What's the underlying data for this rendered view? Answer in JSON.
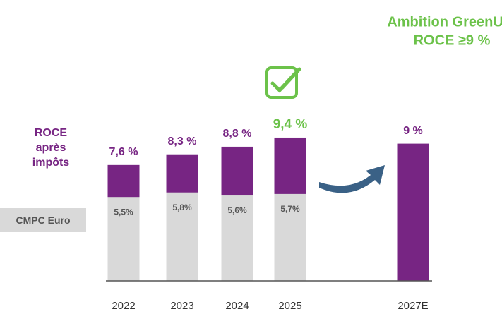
{
  "chart_data": {
    "type": "bar",
    "title": "Ambition GreenUp:",
    "subtitle": "ROCE ≥9 %",
    "categories": [
      "2022",
      "2023",
      "2024",
      "2025",
      "2027E"
    ],
    "series": [
      {
        "name": "ROCE après impôts",
        "color": "#772583",
        "values": [
          7.6,
          8.3,
          8.8,
          9.4,
          9
        ],
        "value_labels": [
          "7,6 %",
          "8,3 %",
          "8,8 %",
          "9,4 %",
          "9 %"
        ]
      },
      {
        "name": "CMPC Euro",
        "color": "#d9d9d9",
        "values": [
          5.5,
          5.8,
          5.6,
          5.7,
          null
        ],
        "value_labels": [
          "5,5%",
          "5,8%",
          "5,6%",
          "5,7%",
          null
        ]
      }
    ],
    "ylim": [
      0,
      10
    ],
    "highlight_category": "2025",
    "highlight_color": "#6cc24a"
  }
}
